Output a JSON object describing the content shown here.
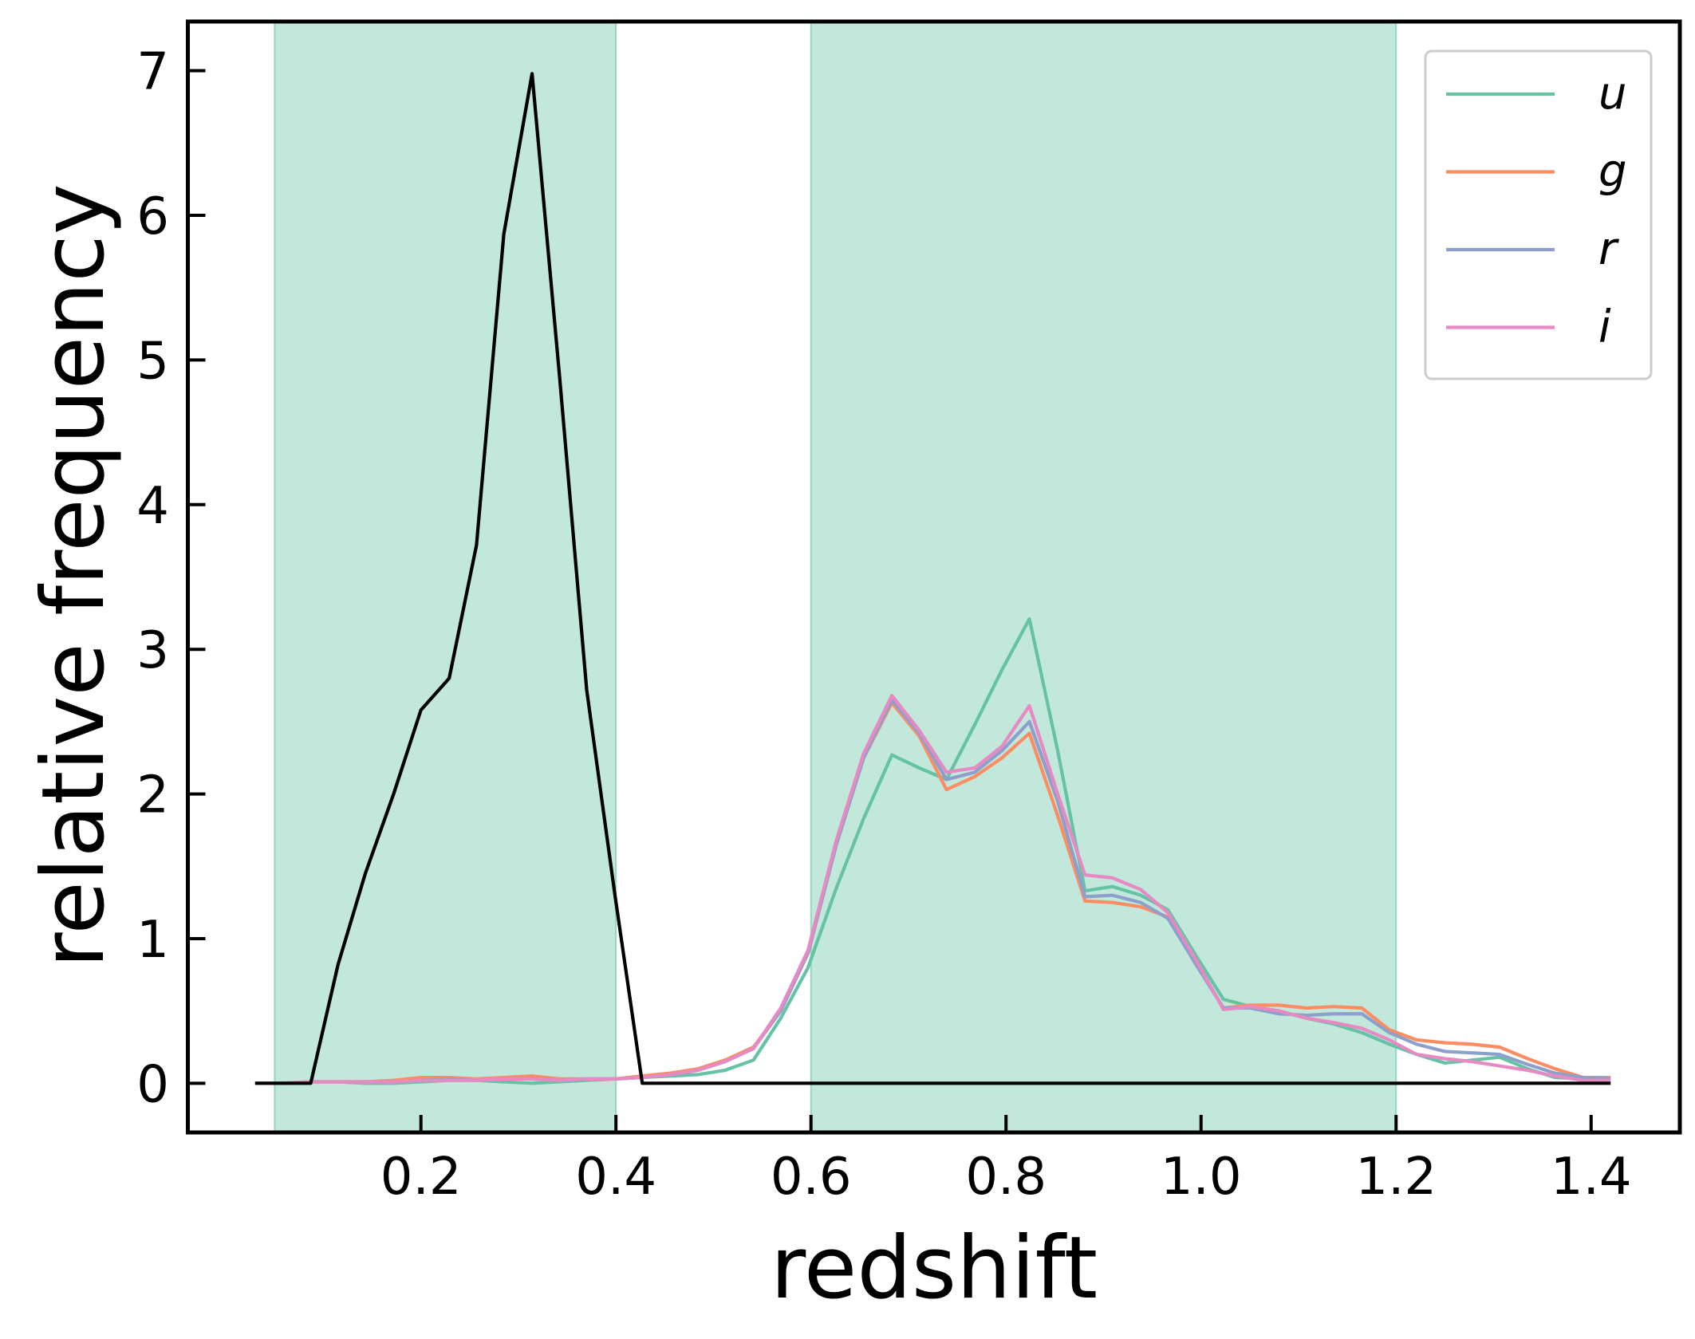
{
  "chart_data": {
    "type": "line",
    "xlabel": "redshift",
    "ylabel": "relative frequency",
    "x": [
      0.03,
      0.058,
      0.087,
      0.115,
      0.143,
      0.172,
      0.2,
      0.229,
      0.257,
      0.285,
      0.314,
      0.342,
      0.37,
      0.399,
      0.427,
      0.456,
      0.484,
      0.512,
      0.541,
      0.569,
      0.597,
      0.626,
      0.654,
      0.683,
      0.711,
      0.739,
      0.768,
      0.796,
      0.824,
      0.853,
      0.881,
      0.909,
      0.938,
      0.966,
      0.995,
      1.023,
      1.051,
      1.08,
      1.108,
      1.136,
      1.165,
      1.193,
      1.221,
      1.25,
      1.278,
      1.306,
      1.335,
      1.363,
      1.392,
      1.42
    ],
    "series": [
      {
        "name": "u",
        "color": "#66c2a5",
        "values": [
          0,
          0,
          0.01,
          0.01,
          0.0,
          0.0,
          0.01,
          0.02,
          0.02,
          0.01,
          0.0,
          0.01,
          0.02,
          0.03,
          0.04,
          0.05,
          0.06,
          0.09,
          0.16,
          0.45,
          0.8,
          1.35,
          1.83,
          2.27,
          2.18,
          2.1,
          2.48,
          2.86,
          3.21,
          2.3,
          1.33,
          1.36,
          1.3,
          1.2,
          0.88,
          0.58,
          0.53,
          0.5,
          0.45,
          0.41,
          0.35,
          0.27,
          0.2,
          0.14,
          0.16,
          0.18,
          0.1,
          0.04,
          0.03,
          0.03
        ]
      },
      {
        "name": "g",
        "color": "#fc8d62",
        "values": [
          0,
          0,
          0.01,
          0.01,
          0.01,
          0.02,
          0.04,
          0.04,
          0.03,
          0.04,
          0.05,
          0.03,
          0.03,
          0.03,
          0.05,
          0.07,
          0.1,
          0.16,
          0.25,
          0.5,
          0.9,
          1.65,
          2.25,
          2.63,
          2.4,
          2.03,
          2.12,
          2.25,
          2.42,
          1.85,
          1.26,
          1.25,
          1.22,
          1.15,
          0.82,
          0.52,
          0.54,
          0.54,
          0.52,
          0.53,
          0.52,
          0.37,
          0.3,
          0.28,
          0.27,
          0.25,
          0.17,
          0.1,
          0.04,
          0.04
        ]
      },
      {
        "name": "r",
        "color": "#8da0cb",
        "values": [
          0,
          0,
          0.01,
          0.01,
          0.01,
          0.01,
          0.02,
          0.03,
          0.02,
          0.03,
          0.03,
          0.02,
          0.03,
          0.03,
          0.04,
          0.06,
          0.09,
          0.15,
          0.24,
          0.5,
          0.9,
          1.65,
          2.25,
          2.65,
          2.42,
          2.1,
          2.15,
          2.3,
          2.5,
          1.95,
          1.29,
          1.3,
          1.25,
          1.14,
          0.82,
          0.52,
          0.52,
          0.48,
          0.47,
          0.48,
          0.48,
          0.35,
          0.27,
          0.22,
          0.21,
          0.2,
          0.13,
          0.07,
          0.04,
          0.03
        ]
      },
      {
        "name": "i",
        "color": "#e78ac3",
        "values": [
          0,
          0,
          0.01,
          0.01,
          0.01,
          0.01,
          0.02,
          0.02,
          0.02,
          0.03,
          0.03,
          0.02,
          0.03,
          0.03,
          0.04,
          0.06,
          0.09,
          0.15,
          0.24,
          0.52,
          0.92,
          1.68,
          2.28,
          2.68,
          2.44,
          2.15,
          2.18,
          2.33,
          2.61,
          2.0,
          1.44,
          1.42,
          1.34,
          1.18,
          0.85,
          0.51,
          0.53,
          0.5,
          0.45,
          0.42,
          0.38,
          0.3,
          0.2,
          0.17,
          0.15,
          0.12,
          0.09,
          0.05,
          0.02,
          0.02
        ]
      },
      {
        "color": "#000000",
        "values": [
          0,
          0,
          0,
          0.82,
          1.45,
          2.0,
          2.58,
          2.8,
          3.72,
          5.87,
          6.98,
          4.9,
          2.72,
          1.3,
          0,
          0,
          0,
          0,
          0,
          0,
          0,
          0,
          0,
          0,
          0,
          0,
          0,
          0,
          0,
          0,
          0,
          0,
          0,
          0,
          0,
          0,
          0,
          0,
          0,
          0,
          0,
          0,
          0,
          0,
          0,
          0,
          0,
          0,
          0,
          0
        ]
      }
    ],
    "spans": [
      [
        0.05,
        0.4
      ],
      [
        0.6,
        1.2
      ]
    ],
    "span_color": "#66c2a5",
    "xlim": [
      -0.039,
      1.491
    ],
    "ylim": [
      -0.34,
      7.34
    ],
    "xticks": [
      0.2,
      0.4,
      0.6,
      0.8,
      {
        "value": 1,
        "label": "1.0"
      },
      1.2,
      1.4
    ],
    "yticks": [
      0,
      1,
      2,
      3,
      4,
      5,
      6,
      7
    ],
    "legend": "upper right"
  }
}
